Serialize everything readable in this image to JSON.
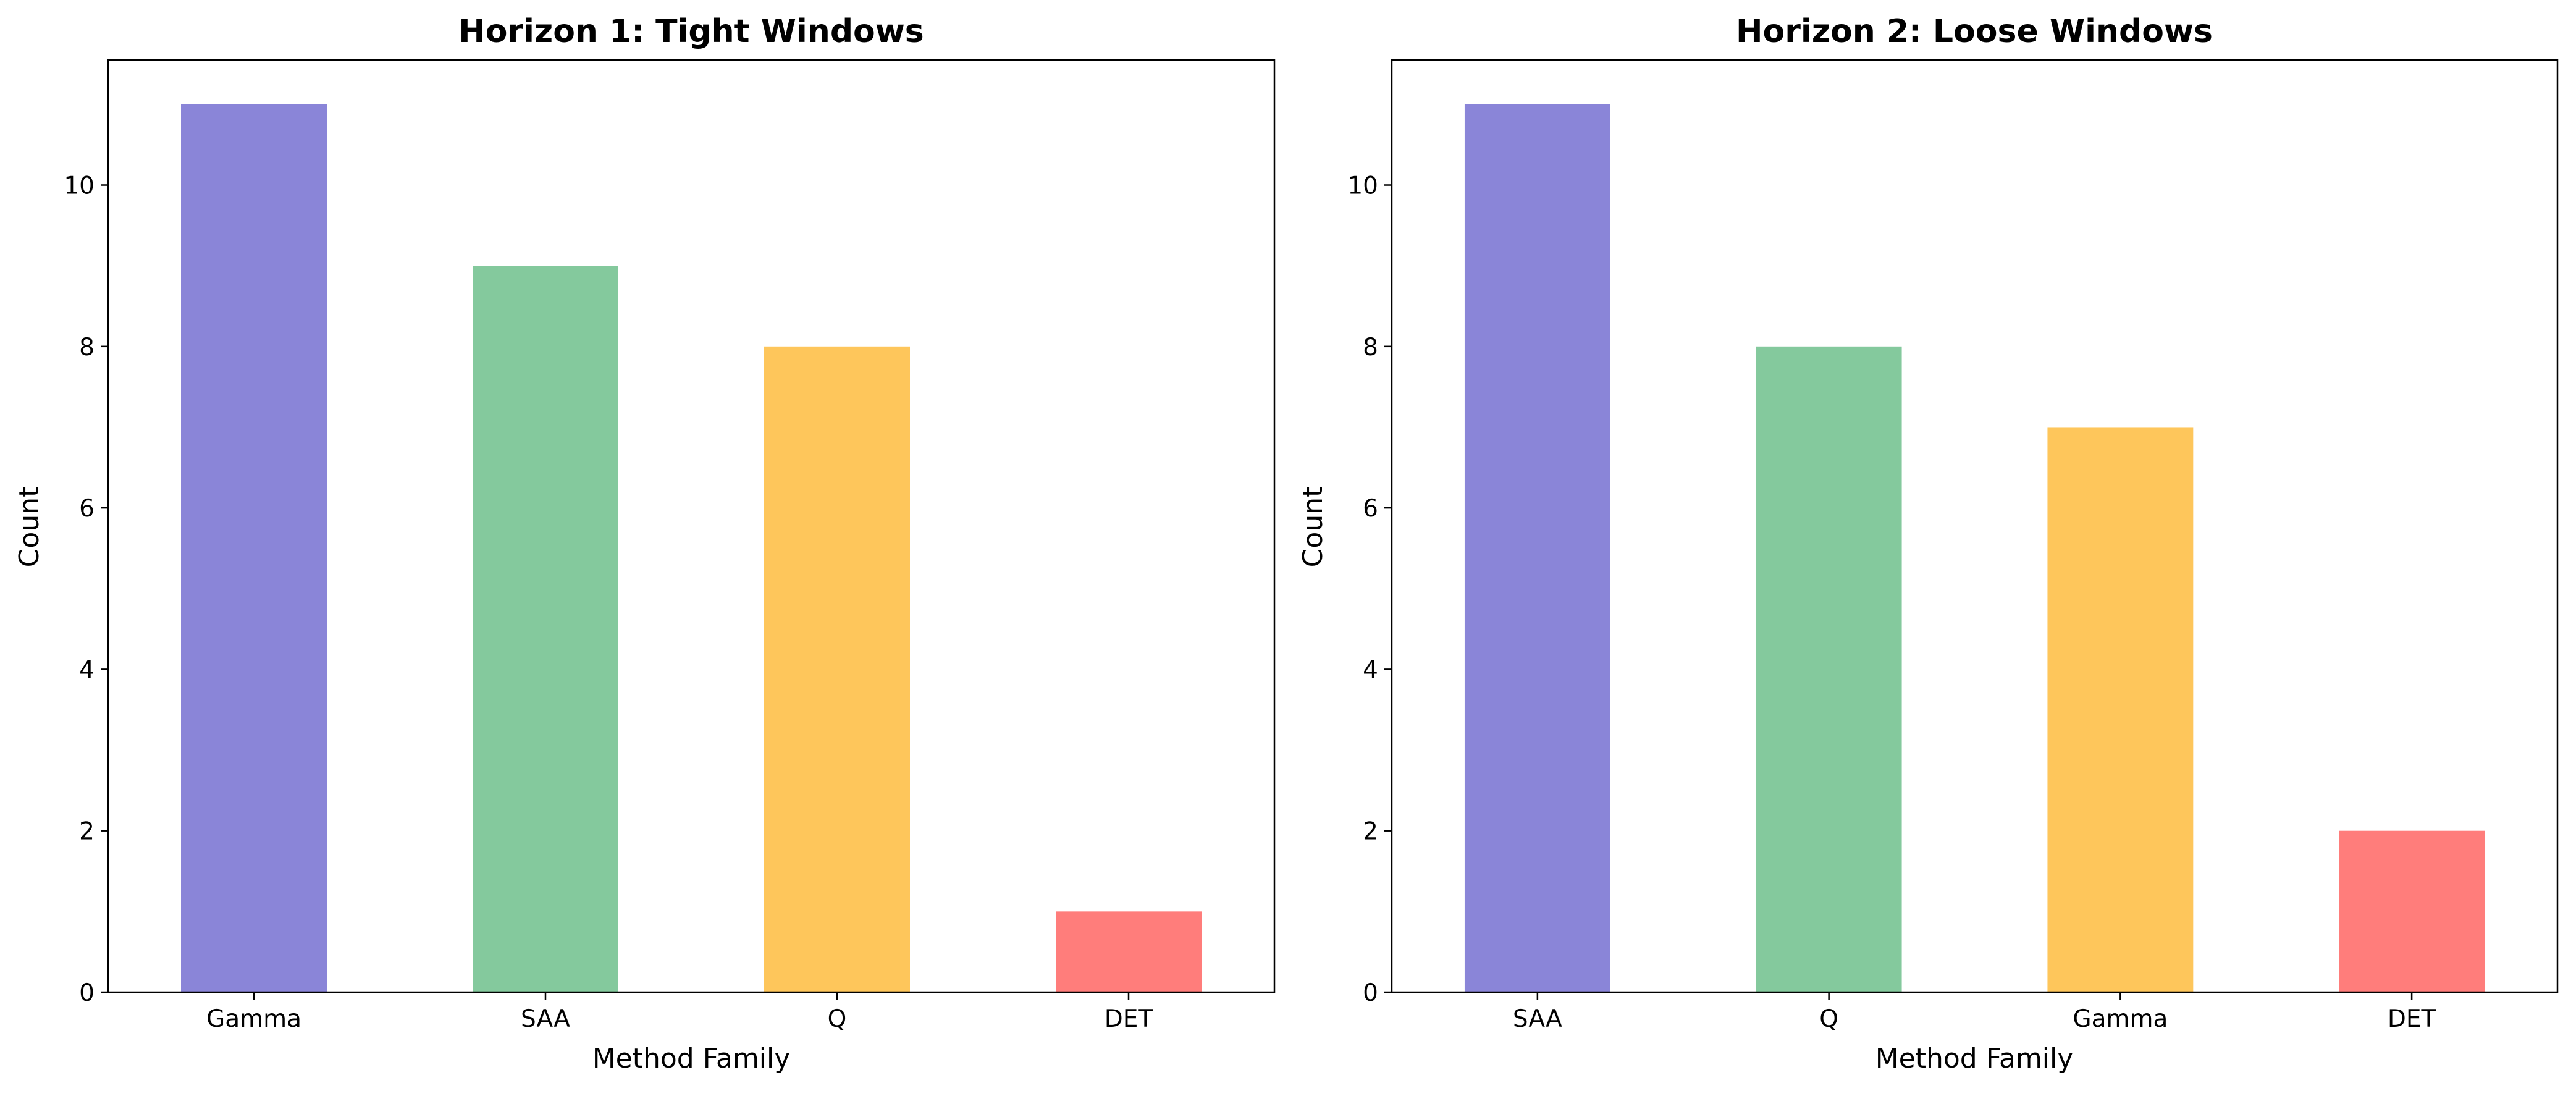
{
  "chart_data": [
    {
      "type": "bar",
      "title": "Horizon 1: Tight Windows",
      "xlabel": "Method Family",
      "ylabel": "Count",
      "categories": [
        "Gamma",
        "SAA",
        "Q",
        "DET"
      ],
      "values": [
        11,
        9,
        8,
        1
      ],
      "colors": [
        "#8a85d8",
        "#84c99d",
        "#fec65b",
        "#ff7d7b"
      ],
      "ylim": [
        0,
        11.55
      ],
      "yticks": [
        0,
        2,
        4,
        6,
        8,
        10
      ],
      "grid": false,
      "legend": "none"
    },
    {
      "type": "bar",
      "title": "Horizon 2: Loose Windows",
      "xlabel": "Method Family",
      "ylabel": "Count",
      "categories": [
        "SAA",
        "Q",
        "Gamma",
        "DET"
      ],
      "values": [
        11,
        8,
        7,
        2
      ],
      "colors": [
        "#8a85d8",
        "#84c99d",
        "#fec65b",
        "#ff7d7b"
      ],
      "ylim": [
        0,
        11.55
      ],
      "yticks": [
        0,
        2,
        4,
        6,
        8,
        10
      ],
      "grid": false,
      "legend": "none"
    }
  ]
}
